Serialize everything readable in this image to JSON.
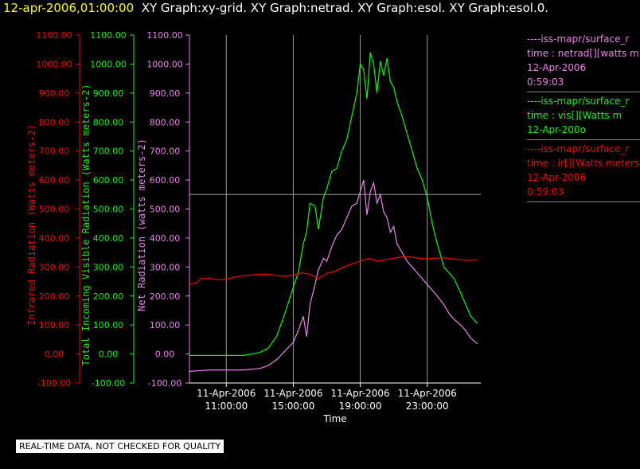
{
  "header": {
    "time": "12-apr-2006,01:00:00",
    "graphs": "XY Graph:xy-grid.  XY Graph:netrad.  XY Graph:esol.  XY Graph:esol.0."
  },
  "quality_note": "REAL-TIME DATA, NOT CHECKED FOR QUALITY",
  "legend": [
    {
      "lines": [
        "----iss-mapr/surface_r",
        "time : netrad[][watts m",
        "12-Apr-2006",
        "0:59:03"
      ],
      "color": "#ee82ee"
    },
    {
      "lines": [
        "----iss-mapr/surface_r",
        "time : vis[][Watts m",
        "12-Apr-200o"
      ],
      "color": "#00ff00"
    },
    {
      "lines": [
        "----iss-mapr/surface_r",
        "time : ir[][Watts meters",
        "12-Apr-2006",
        "0:59:03"
      ],
      "color": "#ff0000"
    }
  ],
  "colors": {
    "net": "#ee82ee",
    "vis": "#00ff00",
    "ir": "#ff0000",
    "text": "#ffffff",
    "time": "#ffff00"
  },
  "chart_data": {
    "type": "line",
    "xlabel": "Time",
    "x_ticks": [
      {
        "hour": 11,
        "label1": "11-Apr-2006",
        "label2": "11:00:00"
      },
      {
        "hour": 15,
        "label1": "11-Apr-2006",
        "label2": "15:00:00"
      },
      {
        "hour": 19,
        "label1": "11-Apr-2006",
        "label2": "19:00:00"
      },
      {
        "hour": 23,
        "label1": "11-Apr-2006",
        "label2": "23:00:00"
      }
    ],
    "xlim": [
      8.8,
      26.2
    ],
    "ylim": [
      -100,
      1100
    ],
    "y_ticks": [
      -100,
      0,
      100,
      200,
      300,
      400,
      500,
      600,
      700,
      800,
      900,
      1000,
      1100
    ],
    "y_tick_labels": [
      "-100.00",
      "0.00",
      "100.00",
      "200.00",
      "300.00",
      "400.00",
      "500.00",
      "600.00",
      "700.00",
      "800.00",
      "900.00",
      "1000.00",
      "1100.00"
    ],
    "axes": [
      {
        "key": "ir",
        "label": "Infrared Radiation (Watts meters-2)",
        "color": "#ff0000"
      },
      {
        "key": "vis",
        "label": "Total Incoming Visible Radiation (Watts meters-2)",
        "color": "#00ff00"
      },
      {
        "key": "net",
        "label": "Net Radiation (watts meters-2)",
        "color": "#ee82ee"
      }
    ],
    "series": [
      {
        "key": "vis",
        "color": "#00ff00",
        "points": [
          [
            8.8,
            -5
          ],
          [
            10,
            -5
          ],
          [
            11,
            -5
          ],
          [
            12,
            -5
          ],
          [
            13,
            5
          ],
          [
            13.5,
            20
          ],
          [
            14,
            60
          ],
          [
            14.5,
            140
          ],
          [
            15,
            230
          ],
          [
            15.3,
            280
          ],
          [
            15.6,
            380
          ],
          [
            15.8,
            420
          ],
          [
            16,
            520
          ],
          [
            16.3,
            510
          ],
          [
            16.5,
            430
          ],
          [
            16.8,
            540
          ],
          [
            17,
            570
          ],
          [
            17.3,
            630
          ],
          [
            17.6,
            640
          ],
          [
            17.9,
            700
          ],
          [
            18.2,
            740
          ],
          [
            18.5,
            820
          ],
          [
            18.8,
            900
          ],
          [
            19,
            1000
          ],
          [
            19.2,
            980
          ],
          [
            19.4,
            880
          ],
          [
            19.6,
            1040
          ],
          [
            19.8,
            1000
          ],
          [
            20,
            900
          ],
          [
            20.2,
            1010
          ],
          [
            20.4,
            960
          ],
          [
            20.6,
            1020
          ],
          [
            20.8,
            940
          ],
          [
            21,
            920
          ],
          [
            21.2,
            870
          ],
          [
            21.5,
            820
          ],
          [
            21.8,
            760
          ],
          [
            22.1,
            700
          ],
          [
            22.4,
            640
          ],
          [
            22.7,
            600
          ],
          [
            23,
            540
          ],
          [
            23.3,
            450
          ],
          [
            23.6,
            380
          ],
          [
            24,
            300
          ],
          [
            24.3,
            280
          ],
          [
            24.6,
            260
          ],
          [
            25,
            210
          ],
          [
            25.3,
            170
          ],
          [
            25.6,
            130
          ],
          [
            26,
            105
          ]
        ]
      },
      {
        "key": "net",
        "color": "#ee82ee",
        "points": [
          [
            8.8,
            -60
          ],
          [
            10,
            -55
          ],
          [
            11,
            -55
          ],
          [
            12,
            -55
          ],
          [
            13,
            -50
          ],
          [
            13.5,
            -40
          ],
          [
            14,
            -20
          ],
          [
            14.5,
            10
          ],
          [
            15,
            40
          ],
          [
            15.3,
            80
          ],
          [
            15.6,
            130
          ],
          [
            15.8,
            60
          ],
          [
            16,
            170
          ],
          [
            16.3,
            240
          ],
          [
            16.5,
            290
          ],
          [
            16.8,
            330
          ],
          [
            17,
            320
          ],
          [
            17.3,
            370
          ],
          [
            17.6,
            410
          ],
          [
            17.9,
            430
          ],
          [
            18.2,
            470
          ],
          [
            18.5,
            510
          ],
          [
            18.8,
            520
          ],
          [
            19,
            560
          ],
          [
            19.2,
            600
          ],
          [
            19.4,
            480
          ],
          [
            19.6,
            560
          ],
          [
            19.8,
            590
          ],
          [
            20,
            520
          ],
          [
            20.2,
            550
          ],
          [
            20.4,
            490
          ],
          [
            20.6,
            470
          ],
          [
            20.8,
            420
          ],
          [
            21,
            440
          ],
          [
            21.2,
            380
          ],
          [
            21.5,
            350
          ],
          [
            21.8,
            320
          ],
          [
            22.1,
            300
          ],
          [
            22.4,
            280
          ],
          [
            22.7,
            260
          ],
          [
            23,
            240
          ],
          [
            23.3,
            220
          ],
          [
            23.6,
            200
          ],
          [
            24,
            170
          ],
          [
            24.3,
            140
          ],
          [
            24.6,
            120
          ],
          [
            25,
            100
          ],
          [
            25.3,
            80
          ],
          [
            25.6,
            55
          ],
          [
            26,
            35
          ]
        ]
      },
      {
        "key": "ir",
        "color": "#ff0000",
        "points": [
          [
            8.8,
            240
          ],
          [
            9.2,
            245
          ],
          [
            9.5,
            260
          ],
          [
            10,
            262
          ],
          [
            10.5,
            255
          ],
          [
            11,
            258
          ],
          [
            11.5,
            265
          ],
          [
            12,
            270
          ],
          [
            12.5,
            272
          ],
          [
            13,
            275
          ],
          [
            13.5,
            275
          ],
          [
            14,
            270
          ],
          [
            14.5,
            268
          ],
          [
            15,
            272
          ],
          [
            15.5,
            280
          ],
          [
            16,
            275
          ],
          [
            16.5,
            260
          ],
          [
            17,
            278
          ],
          [
            17.5,
            285
          ],
          [
            18,
            300
          ],
          [
            18.5,
            310
          ],
          [
            19,
            320
          ],
          [
            19.5,
            330
          ],
          [
            20,
            320
          ],
          [
            20.5,
            325
          ],
          [
            21,
            330
          ],
          [
            21.5,
            335
          ],
          [
            22,
            335
          ],
          [
            22.5,
            330
          ],
          [
            23,
            328
          ],
          [
            23.5,
            330
          ],
          [
            24,
            332
          ],
          [
            24.5,
            328
          ],
          [
            25,
            325
          ],
          [
            25.5,
            322
          ],
          [
            26,
            325
          ]
        ]
      }
    ]
  }
}
